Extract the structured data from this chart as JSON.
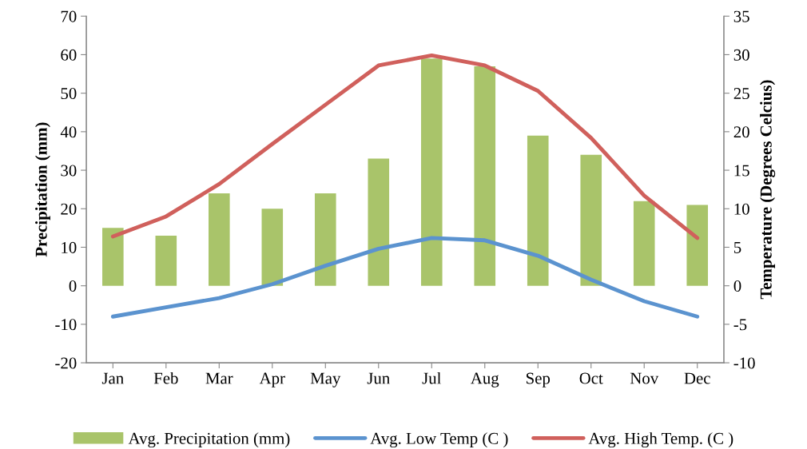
{
  "chart_data": {
    "type": "bar",
    "ylabel": "Precipitation (mm)",
    "y2label": "Temperature (Degrees Celcius)",
    "categories": [
      "Jan",
      "Feb",
      "Mar",
      "Apr",
      "May",
      "Jun",
      "Jul",
      "Aug",
      "Sep",
      "Oct",
      "Nov",
      "Dec"
    ],
    "series": [
      {
        "name": "Avg. Precipitation (mm)",
        "color": "#a9c46a",
        "values": [
          15,
          13,
          24,
          20,
          24,
          33,
          59,
          57,
          39,
          34,
          22,
          21
        ]
      },
      {
        "name": "Avg. Low Temp (C )",
        "type": "line",
        "axis": "y2",
        "color": "#5b93cf",
        "values": [
          -4.0,
          -2.8,
          -1.6,
          0.2,
          2.6,
          4.8,
          6.2,
          5.9,
          3.9,
          0.8,
          -2.0,
          -4.0
        ]
      },
      {
        "name": "Avg. High Temp. (C )",
        "type": "line",
        "axis": "y2",
        "color": "#d0605c",
        "values": [
          6.4,
          9.0,
          13.2,
          18.4,
          23.5,
          28.6,
          29.9,
          28.6,
          25.3,
          19.2,
          11.7,
          6.2
        ]
      }
    ],
    "ylim": [
      -20,
      70
    ],
    "yticks": [
      -20,
      -10,
      0,
      10,
      20,
      30,
      40,
      50,
      60,
      70
    ],
    "y2lim": [
      -10,
      35
    ],
    "y2ticks": [
      -10,
      -5,
      0,
      5,
      10,
      15,
      20,
      25,
      30,
      35
    ],
    "grid": false,
    "legend": "bottom",
    "marker": "none",
    "line_style": "solid"
  }
}
